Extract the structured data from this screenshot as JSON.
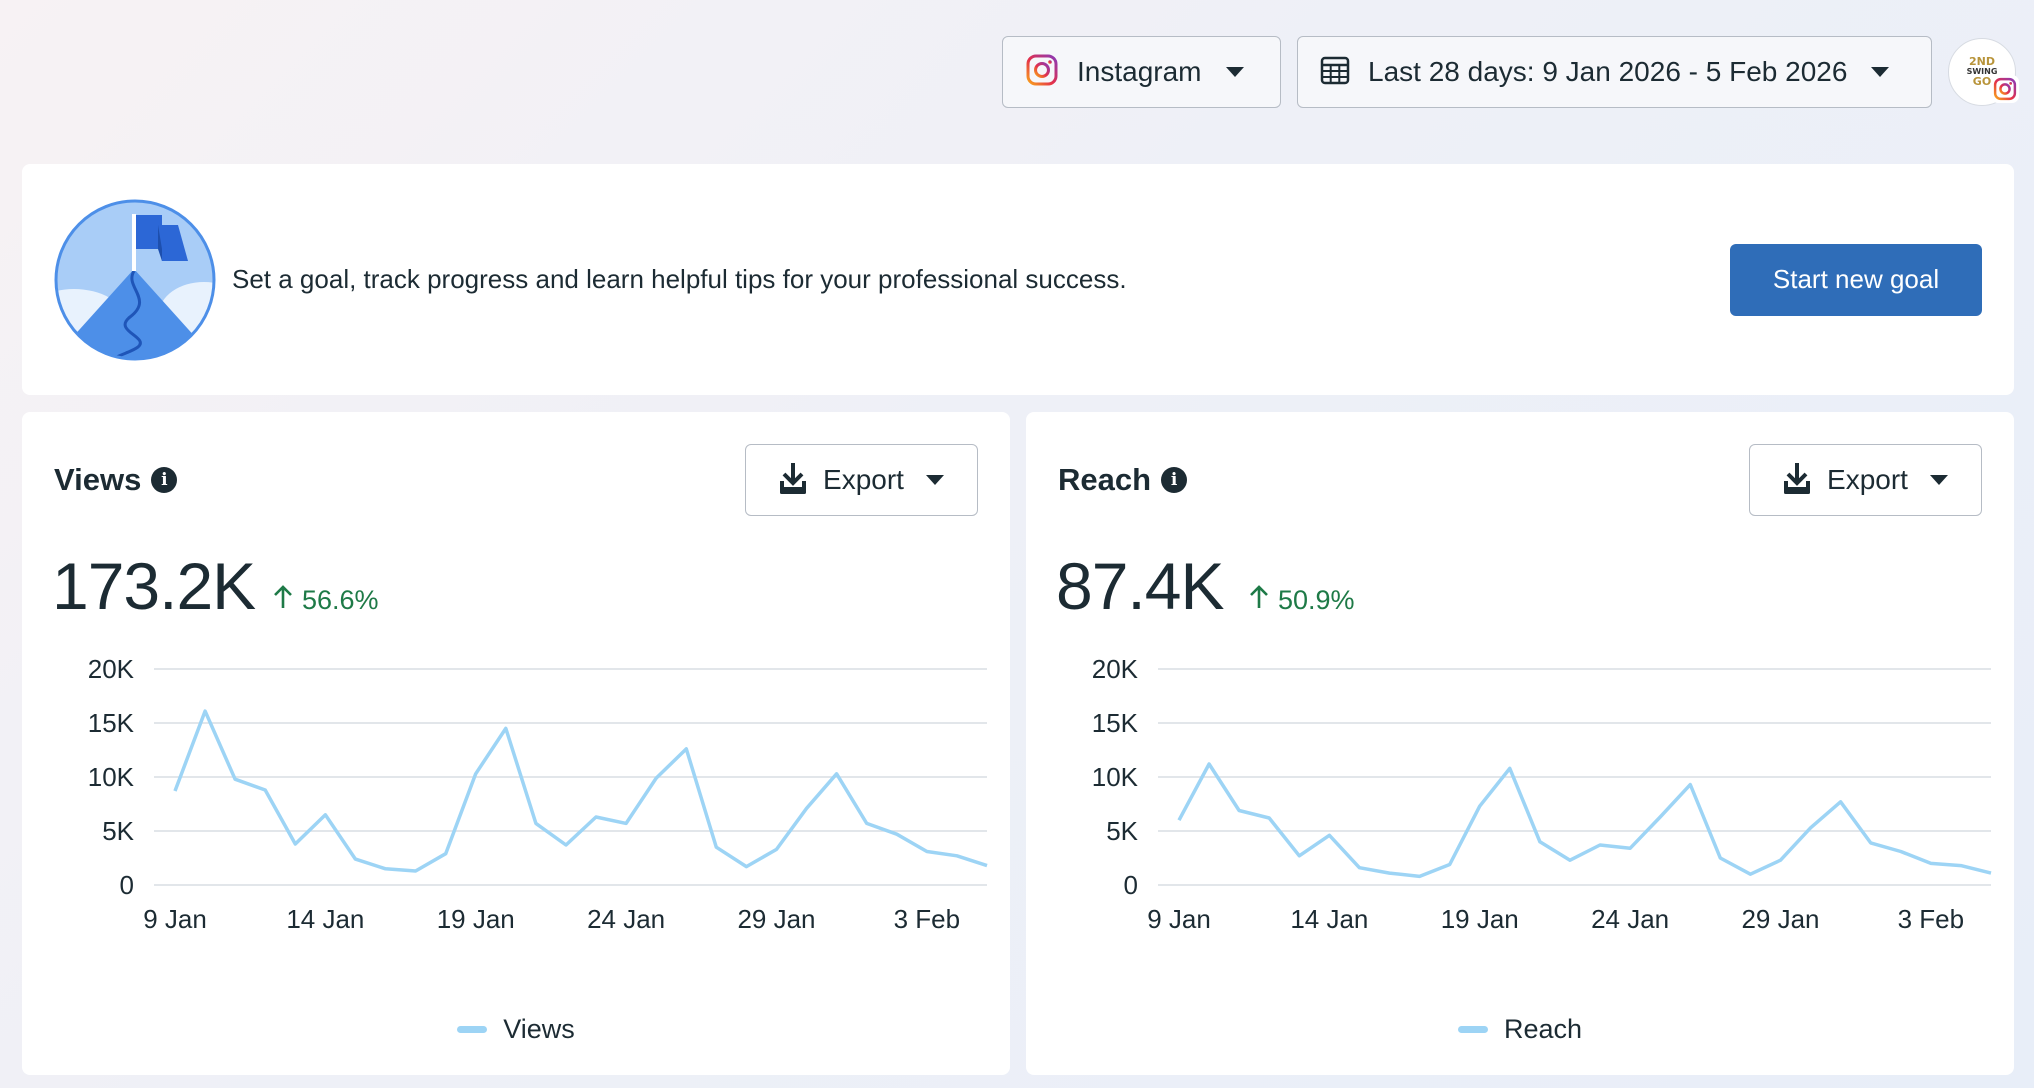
{
  "header": {
    "platform_select": {
      "label": "Instagram",
      "icon": "instagram-icon"
    },
    "date_select": {
      "label": "Last 28 days: 9 Jan 2026 - 5 Feb 2026",
      "icon": "calendar-icon"
    },
    "profile": {
      "logo_lines": [
        "2ND",
        "SWING",
        "GO"
      ],
      "badge_icon": "instagram-icon"
    }
  },
  "goal_banner": {
    "text": "Set a goal, track progress and learn helpful tips for your professional success.",
    "button_label": "Start new goal",
    "illustration": "goal-flag-mountain-illustration"
  },
  "colors": {
    "accent": "#2f6db8",
    "series": "#9dd4f5",
    "positive": "#1e7a47",
    "text": "#1c2b33"
  },
  "cards": [
    {
      "title": "Views",
      "export_label": "Export",
      "value": "173.2K",
      "change": "56.6%",
      "change_direction": "up",
      "legend": "Views",
      "chart_data": {
        "type": "line",
        "x": [
          "9 Jan",
          "10 Jan",
          "11 Jan",
          "12 Jan",
          "13 Jan",
          "14 Jan",
          "15 Jan",
          "16 Jan",
          "17 Jan",
          "18 Jan",
          "19 Jan",
          "20 Jan",
          "21 Jan",
          "22 Jan",
          "23 Jan",
          "24 Jan",
          "25 Jan",
          "26 Jan",
          "27 Jan",
          "28 Jan",
          "29 Jan",
          "30 Jan",
          "31 Jan",
          "1 Feb",
          "2 Feb",
          "3 Feb",
          "4 Feb",
          "5 Feb"
        ],
        "x_tick_labels": [
          "9 Jan",
          "14 Jan",
          "19 Jan",
          "24 Jan",
          "29 Jan",
          "3 Feb"
        ],
        "y_tick_labels": [
          "0",
          "5K",
          "10K",
          "15K",
          "20K"
        ],
        "y_ticks": [
          0,
          5000,
          10000,
          15000,
          20000
        ],
        "ylim": [
          0,
          20000
        ],
        "series": [
          {
            "name": "Views",
            "values": [
              8700,
              16100,
              9800,
              8800,
              3800,
              6500,
              2400,
              1500,
              1300,
              2900,
              10300,
              14500,
              5700,
              3700,
              6300,
              5700,
              9900,
              12600,
              3500,
              1700,
              3300,
              7100,
              10300,
              5700,
              4700,
              3100,
              2700,
              1800
            ]
          }
        ],
        "grid": true
      }
    },
    {
      "title": "Reach",
      "export_label": "Export",
      "value": "87.4K",
      "change": "50.9%",
      "change_direction": "up",
      "legend": "Reach",
      "chart_data": {
        "type": "line",
        "x": [
          "9 Jan",
          "10 Jan",
          "11 Jan",
          "12 Jan",
          "13 Jan",
          "14 Jan",
          "15 Jan",
          "16 Jan",
          "17 Jan",
          "18 Jan",
          "19 Jan",
          "20 Jan",
          "21 Jan",
          "22 Jan",
          "23 Jan",
          "24 Jan",
          "25 Jan",
          "26 Jan",
          "27 Jan",
          "28 Jan",
          "29 Jan",
          "30 Jan",
          "31 Jan",
          "1 Feb",
          "2 Feb",
          "3 Feb",
          "4 Feb",
          "5 Feb"
        ],
        "x_tick_labels": [
          "9 Jan",
          "14 Jan",
          "19 Jan",
          "24 Jan",
          "29 Jan",
          "3 Feb"
        ],
        "y_tick_labels": [
          "0",
          "5K",
          "10K",
          "15K",
          "20K"
        ],
        "y_ticks": [
          0,
          5000,
          10000,
          15000,
          20000
        ],
        "ylim": [
          0,
          20000
        ],
        "series": [
          {
            "name": "Reach",
            "values": [
              6000,
              11200,
              6900,
              6200,
              2700,
              4600,
              1600,
              1100,
              800,
              1900,
              7300,
              10800,
              4000,
              2300,
              3700,
              3400,
              6300,
              9300,
              2500,
              1000,
              2300,
              5300,
              7700,
              3900,
              3100,
              2000,
              1800,
              1100
            ]
          }
        ],
        "grid": true
      }
    }
  ]
}
